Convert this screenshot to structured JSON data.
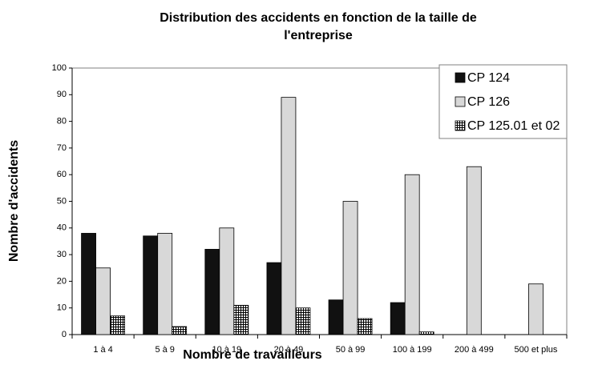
{
  "chart_data": {
    "type": "bar",
    "title": "Distribution des accidents en fonction de la taille de l'entreprise",
    "x_label": "Nombre de travailleurs",
    "y_label": "Nombre d'accidents",
    "categories": [
      "1 à 4",
      "5 à 9",
      "10 à 19",
      "20 à 49",
      "50 à 99",
      "100 à 199",
      "200 à 499",
      "500 et plus"
    ],
    "series": [
      {
        "name": "CP 124",
        "color": "#111111",
        "values": [
          38,
          37,
          32,
          27,
          13,
          12,
          null,
          null
        ]
      },
      {
        "name": "CP 126",
        "color": "#d8d8d8",
        "values": [
          25,
          38,
          40,
          89,
          50,
          60,
          63,
          19
        ]
      },
      {
        "name": "CP 125.01 et 02",
        "color": "#ffffff",
        "pattern": "grid",
        "values": [
          7,
          3,
          11,
          10,
          6,
          1,
          null,
          null
        ]
      }
    ],
    "ylim": [
      0,
      100
    ],
    "yticks": [
      0,
      10,
      20,
      30,
      40,
      50,
      60,
      70,
      80,
      90,
      100
    ],
    "grid": false,
    "legend": "upper right"
  }
}
